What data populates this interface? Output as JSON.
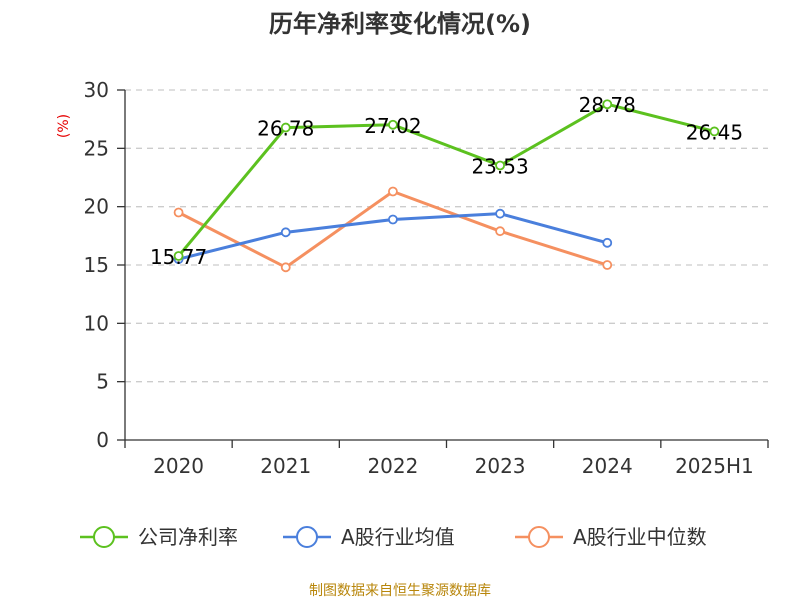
{
  "title": "历年净利率变化情况(%)",
  "unit_label": "(%)",
  "source": "制图数据来自恒生聚源数据库",
  "colors": {
    "net_margin": "#5cc11f",
    "industry_avg": "#4a7fdc",
    "industry_median": "#f59060",
    "grid": "#cccccc",
    "axis": "#333333",
    "source": "#b8860b",
    "unit": "#e60000"
  },
  "chart_data": {
    "type": "line",
    "title": "历年净利率变化情况(%)",
    "ylabel": "(%)",
    "categories": [
      "2020",
      "2021",
      "2022",
      "2023",
      "2024",
      "2025H1"
    ],
    "ylim": [
      0,
      30
    ],
    "yticks": [
      0,
      5,
      10,
      15,
      20,
      25,
      30
    ],
    "grid": true,
    "legend_position": "bottom",
    "series": [
      {
        "name": "公司净利率",
        "color_key": "net_margin",
        "values": [
          15.77,
          26.78,
          27.02,
          23.53,
          28.78,
          26.45
        ],
        "labels": [
          "15.77",
          "26.78",
          "27.02",
          "23.53",
          "28.78",
          "26.45"
        ]
      },
      {
        "name": "A股行业均值",
        "color_key": "industry_avg",
        "values": [
          15.5,
          17.8,
          18.9,
          19.4,
          16.9,
          null
        ]
      },
      {
        "name": "A股行业中位数",
        "color_key": "industry_median",
        "values": [
          19.5,
          14.8,
          21.3,
          17.9,
          15.0,
          null
        ]
      }
    ]
  }
}
